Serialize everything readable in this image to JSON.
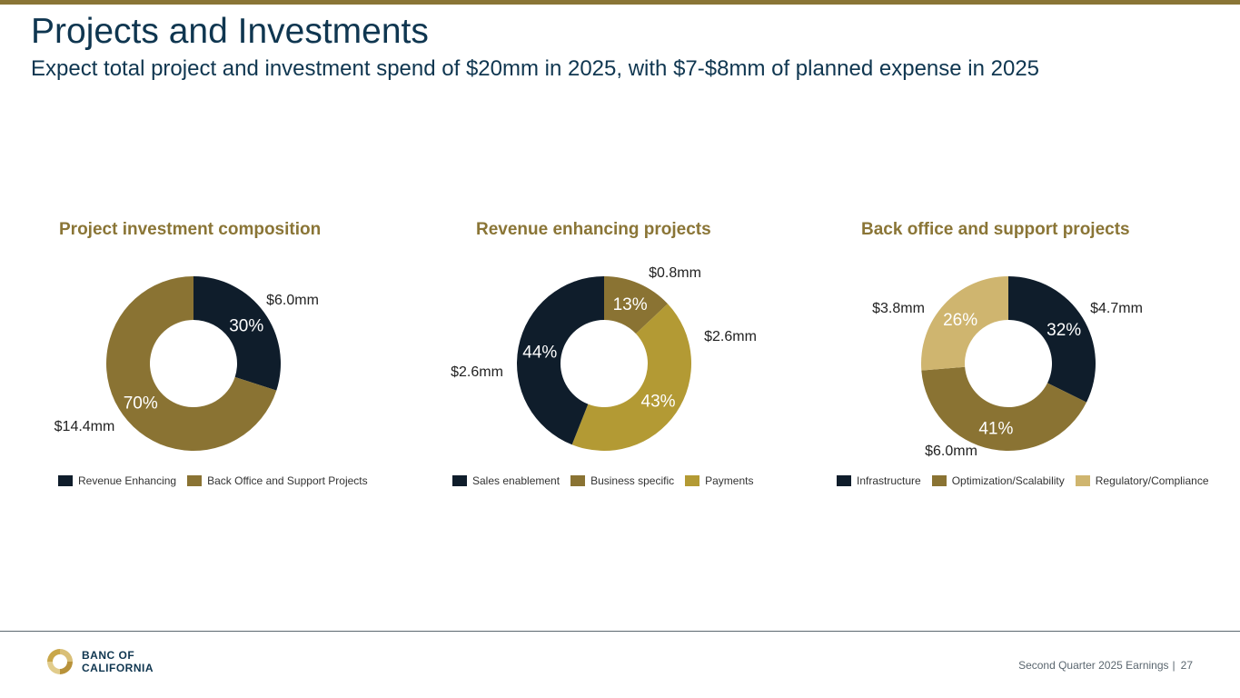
{
  "header": {
    "title": "Projects and Investments",
    "subtitle": "Expect total project and investment spend of $20mm in 2025, with $7-$8mm of planned expense in 2025"
  },
  "colors": {
    "navy": "#0f1d2b",
    "olive": "#8a7333",
    "gold": "#b39a34",
    "tan": "#cfb56f",
    "accent_rule": "#8a7536",
    "title_color": "#0f3650"
  },
  "chart_data": [
    {
      "type": "pie",
      "title": "Project investment composition",
      "categories": [
        "Revenue Enhancing",
        "Back Office and Support Projects"
      ],
      "values": [
        30,
        70
      ],
      "percent_labels": [
        "30%",
        "70%"
      ],
      "amount_labels": [
        "$6.0mm",
        "$14.4mm"
      ],
      "colors": [
        "#0f1d2b",
        "#8a7333"
      ],
      "legend": "bottom"
    },
    {
      "type": "pie",
      "title": "Revenue enhancing projects",
      "categories": [
        "Business specific",
        "Payments",
        "Sales enablement"
      ],
      "values": [
        13,
        43,
        44
      ],
      "percent_labels": [
        "13%",
        "43%",
        "44%"
      ],
      "amount_labels": [
        "$0.8mm",
        "$2.6mm",
        "$2.6mm"
      ],
      "colors": [
        "#8a7333",
        "#b39a34",
        "#0f1d2b"
      ],
      "legend_items": [
        "Sales enablement",
        "Business specific",
        "Payments"
      ],
      "legend_colors": [
        "#0f1d2b",
        "#8a7333",
        "#b39a34"
      ],
      "legend": "bottom"
    },
    {
      "type": "pie",
      "title": "Back office and support projects",
      "categories": [
        "Infrastructure",
        "Optimization/Scalability",
        "Regulatory/Compliance"
      ],
      "values": [
        32,
        41,
        26
      ],
      "percent_labels": [
        "32%",
        "41%",
        "26%"
      ],
      "amount_labels": [
        "$4.7mm",
        "$6.0mm",
        "$3.8mm"
      ],
      "colors": [
        "#0f1d2b",
        "#8a7333",
        "#cfb56f"
      ],
      "legend": "bottom"
    }
  ],
  "footer": {
    "logo_line1": "BANC OF",
    "logo_line2": "CALIFORNIA",
    "label": "Second Quarter 2025 Earnings",
    "separator": "|",
    "page_number": "27"
  }
}
